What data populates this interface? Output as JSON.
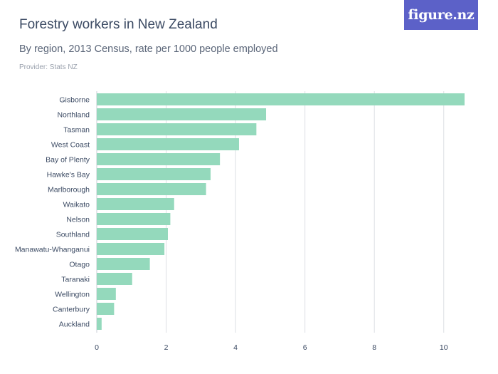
{
  "header": {
    "title": "Forestry workers in New Zealand",
    "subtitle": "By region, 2013 Census, rate per 1000 people employed",
    "provider": "Provider: Stats NZ",
    "logo_text": "figure.nz"
  },
  "colors": {
    "bar": "#94d9bc",
    "grid": "#dcdfe4",
    "text": "#3b4a63",
    "logo_bg": "#5c61c8"
  },
  "chart_data": {
    "type": "bar",
    "orientation": "horizontal",
    "title": "Forestry workers in New Zealand",
    "subtitle": "By region, 2013 Census, rate per 1000 people employed",
    "categories": [
      "Gisborne",
      "Northland",
      "Tasman",
      "West Coast",
      "Bay of Plenty",
      "Hawke's Bay",
      "Marlborough",
      "Waikato",
      "Nelson",
      "Southland",
      "Manawatu-Whanganui",
      "Otago",
      "Taranaki",
      "Wellington",
      "Canterbury",
      "Auckland"
    ],
    "values": [
      10.6,
      4.88,
      4.6,
      4.1,
      3.55,
      3.28,
      3.15,
      2.23,
      2.12,
      2.05,
      1.95,
      1.53,
      1.02,
      0.55,
      0.5,
      0.14
    ],
    "xlim": [
      0,
      10.6
    ],
    "xticks": [
      0,
      2,
      4,
      6,
      8,
      10
    ],
    "xtick_labels": [
      "0",
      "2",
      "4",
      "6",
      "8",
      "10"
    ],
    "xlabel": "",
    "ylabel": "",
    "grid": true
  }
}
